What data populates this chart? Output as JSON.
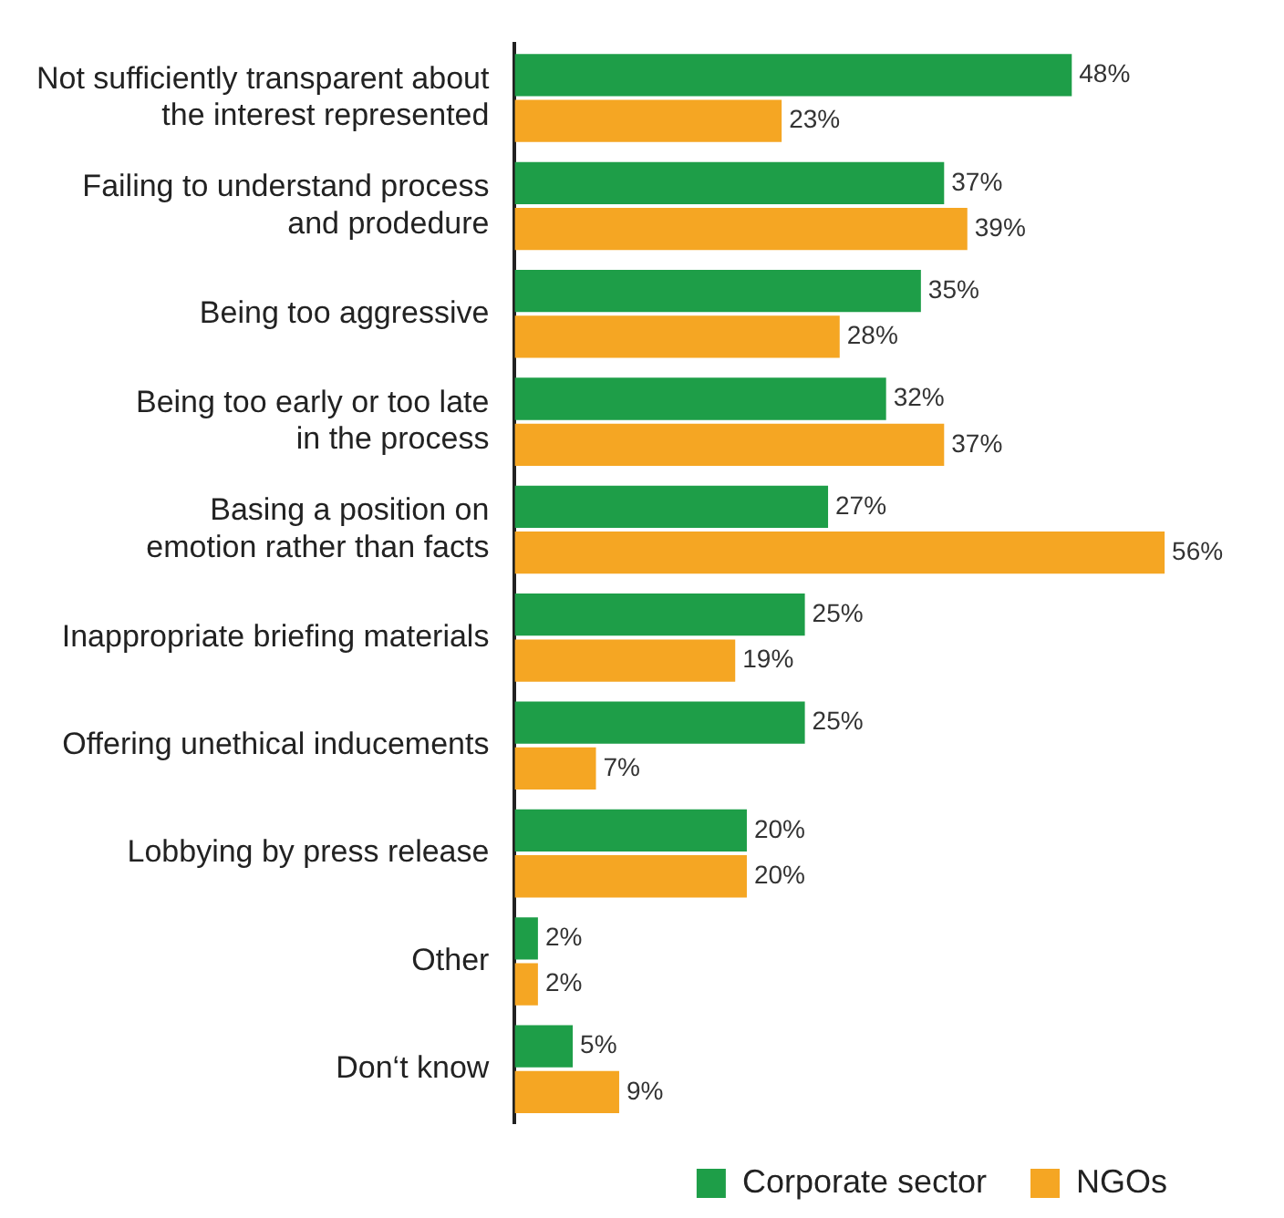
{
  "chart_data": {
    "type": "bar",
    "orientation": "horizontal",
    "categories": [
      "Not sufficiently transparent about\nthe interest represented",
      "Failing to understand process\nand prodedure",
      "Being too aggressive",
      "Being too early or too late\nin the process",
      "Basing a position on\nemotion rather than facts",
      "Inappropriate briefing materials",
      "Offering unethical inducements",
      "Lobbying by press release",
      "Other",
      "Don‘t know"
    ],
    "series": [
      {
        "name": "Corporate sector",
        "color": "#1e9e48",
        "values": [
          48,
          37,
          35,
          32,
          27,
          25,
          25,
          20,
          2,
          5
        ],
        "value_labels": [
          "48%",
          "37%",
          "35%",
          "32%",
          "27%",
          "25%",
          "25%",
          "20%",
          "2%",
          "5%"
        ]
      },
      {
        "name": "NGOs",
        "color": "#f5a623",
        "values": [
          23,
          39,
          28,
          37,
          56,
          19,
          7,
          20,
          2,
          9
        ],
        "value_labels": [
          "23%",
          "39%",
          "28%",
          "37%",
          "56%",
          "19%",
          "7%",
          "20%",
          "2%",
          "9%"
        ]
      }
    ],
    "legend": "bottom"
  }
}
